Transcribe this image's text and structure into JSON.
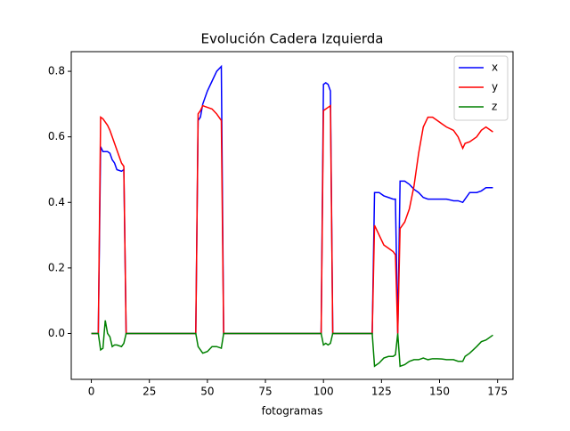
{
  "chart_data": {
    "type": "line",
    "title": "Evolución Cadera Izquierda",
    "x_label": "fotogramas",
    "x": [
      0,
      2,
      3,
      4,
      5,
      6,
      7,
      8,
      9,
      10,
      11,
      13,
      14,
      15,
      45,
      46,
      47,
      48,
      50,
      52,
      54,
      56,
      57,
      99,
      100,
      101,
      102,
      103,
      104,
      121,
      122,
      124,
      126,
      128,
      130,
      131,
      132,
      133,
      135,
      137,
      139,
      141,
      143,
      145,
      147,
      149,
      151,
      153,
      156,
      158,
      160,
      161,
      163,
      166,
      168,
      170,
      173
    ],
    "series": [
      {
        "name": "x",
        "color": "#0000ff",
        "values": [
          0,
          0,
          0,
          0.57,
          0.555,
          0.555,
          0.555,
          0.55,
          0.53,
          0.52,
          0.5,
          0.495,
          0.5,
          0,
          0,
          0.65,
          0.66,
          0.7,
          0.74,
          0.77,
          0.8,
          0.815,
          0,
          0,
          0.76,
          0.765,
          0.76,
          0.74,
          0,
          0,
          0.43,
          0.43,
          0.42,
          0.415,
          0.41,
          0.41,
          0,
          0.465,
          0.465,
          0.455,
          0.44,
          0.43,
          0.415,
          0.41,
          0.41,
          0.41,
          0.41,
          0.41,
          0.405,
          0.405,
          0.4,
          0.41,
          0.43,
          0.43,
          0.435,
          0.445,
          0.445
        ]
      },
      {
        "name": "y",
        "color": "#ff0000",
        "values": [
          0,
          0,
          0,
          0.66,
          0.655,
          0.645,
          0.635,
          0.62,
          0.6,
          0.58,
          0.56,
          0.52,
          0.51,
          0,
          0,
          0.67,
          0.68,
          0.695,
          0.69,
          0.685,
          0.67,
          0.65,
          0,
          0,
          0.68,
          0.685,
          0.69,
          0.695,
          0,
          0,
          0.33,
          0.3,
          0.27,
          0.26,
          0.25,
          0.24,
          0,
          0.32,
          0.34,
          0.38,
          0.45,
          0.55,
          0.63,
          0.66,
          0.66,
          0.65,
          0.64,
          0.63,
          0.62,
          0.6,
          0.565,
          0.58,
          0.585,
          0.6,
          0.62,
          0.63,
          0.615
        ]
      },
      {
        "name": "z",
        "color": "#008000",
        "values": [
          0,
          0,
          0,
          -0.05,
          -0.045,
          0.04,
          0,
          -0.01,
          -0.04,
          -0.035,
          -0.035,
          -0.04,
          -0.03,
          0,
          0,
          -0.04,
          -0.05,
          -0.06,
          -0.055,
          -0.04,
          -0.04,
          -0.045,
          0,
          0,
          -0.035,
          -0.03,
          -0.035,
          -0.03,
          0,
          0,
          -0.1,
          -0.09,
          -0.075,
          -0.07,
          -0.07,
          -0.065,
          0,
          -0.1,
          -0.095,
          -0.085,
          -0.08,
          -0.08,
          -0.075,
          -0.08,
          -0.077,
          -0.077,
          -0.078,
          -0.08,
          -0.08,
          -0.085,
          -0.085,
          -0.07,
          -0.06,
          -0.04,
          -0.025,
          -0.02,
          -0.005
        ]
      }
    ],
    "xlim": [
      -8.65,
      181.65
    ],
    "xticks": [
      0,
      25,
      50,
      75,
      100,
      125,
      150,
      175
    ],
    "ylim": [
      -0.14,
      0.86
    ],
    "yticks": [
      {
        "value": 0,
        "label": "0.0"
      },
      0.2,
      0.4,
      0.6,
      0.8
    ],
    "legend": "upper right"
  }
}
